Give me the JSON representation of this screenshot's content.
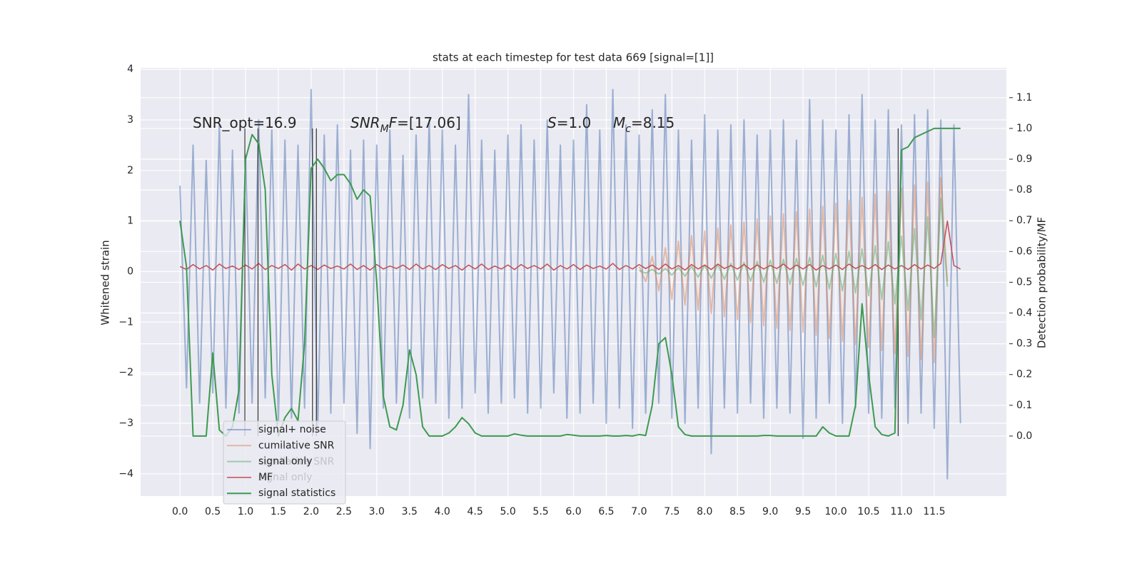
{
  "chart_data": {
    "type": "line",
    "title": "stats at each timestep for test data 669 [signal=[1]]",
    "ylabel": "Whitened strain",
    "y2label": "Detection probability/MF",
    "grid": true,
    "background": "#eaeaf2",
    "xlim": [
      -0.6,
      12.6
    ],
    "ylim": [
      -4.44,
      4.03
    ],
    "y2lim": [
      -0.195,
      1.197
    ],
    "xticks": [
      {
        "value": 0,
        "label": "0.0"
      },
      0.5,
      {
        "value": 1,
        "label": "1.0"
      },
      1.5,
      {
        "value": 2,
        "label": "2.0"
      },
      2.5,
      {
        "value": 3,
        "label": "3.0"
      },
      3.5,
      {
        "value": 4,
        "label": "4.0"
      },
      4.5,
      {
        "value": 5,
        "label": "5.0"
      },
      5.5,
      {
        "value": 6,
        "label": "6.0"
      },
      6.5,
      {
        "value": 7,
        "label": "7.0"
      },
      7.5,
      {
        "value": 8,
        "label": "8.0"
      },
      8.5,
      {
        "value": 9,
        "label": "9.0"
      },
      9.5,
      {
        "value": 10,
        "label": "10.0"
      },
      10.5,
      {
        "value": 11,
        "label": "11.0"
      },
      11.5
    ],
    "yticks": [
      {
        "value": -4,
        "label": "−4"
      },
      {
        "value": -3,
        "label": "−3"
      },
      {
        "value": -2,
        "label": "−2"
      },
      {
        "value": -1,
        "label": "−1"
      },
      0,
      1,
      2,
      3,
      4
    ],
    "y2ticks": [
      {
        "value": 0,
        "label": "0.0"
      },
      0.1,
      0.2,
      0.3,
      0.4,
      0.5,
      0.6,
      0.7,
      0.8,
      0.9,
      {
        "value": 1,
        "label": "1.0"
      },
      1.1
    ],
    "x": [
      0,
      0.1,
      0.2,
      0.3,
      0.4,
      0.5,
      0.6,
      0.7,
      0.8,
      0.9,
      1,
      1.1,
      1.2,
      1.3,
      1.4,
      1.5,
      1.6,
      1.7,
      1.8,
      1.9,
      2,
      2.1,
      2.2,
      2.3,
      2.4,
      2.5,
      2.6,
      2.7,
      2.8,
      2.9,
      3,
      3.1,
      3.2,
      3.3,
      3.4,
      3.5,
      3.6,
      3.7,
      3.8,
      3.9,
      4,
      4.1,
      4.2,
      4.3,
      4.4,
      4.5,
      4.6,
      4.7,
      4.8,
      4.9,
      5,
      5.1,
      5.2,
      5.3,
      5.4,
      5.5,
      5.6,
      5.7,
      5.8,
      5.9,
      6,
      6.1,
      6.2,
      6.3,
      6.4,
      6.5,
      6.6,
      6.7,
      6.8,
      6.9,
      7,
      7.1,
      7.2,
      7.3,
      7.4,
      7.5,
      7.6,
      7.7,
      7.8,
      7.9,
      8,
      8.1,
      8.2,
      8.3,
      8.4,
      8.5,
      8.6,
      8.7,
      8.8,
      8.9,
      9,
      9.1,
      9.2,
      9.3,
      9.4,
      9.5,
      9.6,
      9.7,
      9.8,
      9.9,
      10,
      10.1,
      10.2,
      10.3,
      10.4,
      10.5,
      10.6,
      10.7,
      10.8,
      10.9,
      11,
      11.1,
      11.2,
      11.3,
      11.4,
      11.5,
      11.6,
      11.7,
      11.8,
      11.9
    ],
    "series": [
      {
        "name": "signal+ noise",
        "color": "#4c72b0",
        "alpha": 0.5,
        "width": 2,
        "values": [
          1.7,
          -2.3,
          2.5,
          -2.6,
          2.2,
          -2.4,
          2.9,
          -2.7,
          2.4,
          -2.8,
          2.3,
          -2.6,
          3.0,
          -2.5,
          2.8,
          -3.0,
          2.6,
          -2.9,
          2.5,
          -2.7,
          3.6,
          -3.1,
          2.7,
          -2.8,
          2.9,
          -2.6,
          2.4,
          -3.2,
          2.6,
          -3.5,
          2.5,
          -2.7,
          2.8,
          -2.6,
          2.3,
          -2.9,
          2.7,
          -2.5,
          3.0,
          -2.6,
          2.8,
          -2.9,
          2.5,
          -2.7,
          3.5,
          -2.4,
          2.6,
          -2.8,
          2.4,
          -2.6,
          2.7,
          -2.5,
          2.9,
          -2.8,
          2.6,
          -2.7,
          3.0,
          -2.4,
          2.5,
          -2.9,
          2.6,
          -2.8,
          3.3,
          -2.6,
          2.8,
          -3.0,
          3.6,
          -2.7,
          2.9,
          -3.1,
          2.7,
          -2.8,
          3.2,
          -2.6,
          3.5,
          -2.9,
          2.8,
          -3.0,
          2.6,
          -2.7,
          3.1,
          -3.6,
          2.8,
          -2.7,
          2.9,
          -2.8,
          3.0,
          -2.6,
          2.7,
          -2.9,
          2.8,
          -2.7,
          3.0,
          -2.8,
          2.6,
          -3.3,
          3.4,
          -2.9,
          3.0,
          -2.6,
          2.8,
          -3.0,
          3.1,
          -2.7,
          3.5,
          -2.8,
          3.0,
          -2.9,
          3.2,
          -2.7,
          2.9,
          -3.0,
          3.1,
          -2.8,
          3.2,
          -3.1,
          3.0,
          -4.1,
          2.9,
          -3.0
        ]
      },
      {
        "name": "cumilative SNR",
        "color": "#dd8452",
        "alpha": 0.5,
        "width": 2,
        "x": [
          7,
          7.1,
          7.2,
          7.3,
          7.4,
          7.5,
          7.6,
          7.7,
          7.8,
          7.9,
          8,
          8.1,
          8.2,
          8.3,
          8.4,
          8.5,
          8.6,
          8.7,
          8.8,
          8.9,
          9,
          9.1,
          9.2,
          9.3,
          9.4,
          9.5,
          9.6,
          9.7,
          9.8,
          9.9,
          10,
          10.1,
          10.2,
          10.3,
          10.4,
          10.5,
          10.6,
          10.7,
          10.8,
          10.9,
          11,
          11.1,
          11.2,
          11.3,
          11.4,
          11.5,
          11.6,
          11.7
        ],
        "values": [
          0.1,
          -0.2,
          0.3,
          -0.38,
          0.47,
          -0.55,
          0.6,
          -0.66,
          0.71,
          -0.76,
          0.8,
          -0.83,
          0.86,
          -0.89,
          0.92,
          -0.95,
          0.98,
          -1.01,
          1.04,
          -1.07,
          1.1,
          -1.12,
          1.14,
          -1.16,
          1.18,
          -1.2,
          1.23,
          -1.26,
          1.29,
          -1.32,
          1.35,
          -1.38,
          1.41,
          -1.44,
          1.47,
          -1.5,
          1.53,
          -1.56,
          1.59,
          -1.62,
          1.65,
          -1.68,
          1.71,
          -1.74,
          1.77,
          -1.8,
          1.85,
          -0.2
        ]
      },
      {
        "name": "signal only",
        "color": "#55a868",
        "alpha": 0.5,
        "width": 2,
        "x": [
          7,
          7.1,
          7.2,
          7.3,
          7.4,
          7.5,
          7.6,
          7.7,
          7.8,
          7.9,
          8,
          8.1,
          8.2,
          8.3,
          8.4,
          8.5,
          8.6,
          8.7,
          8.8,
          8.9,
          9,
          9.1,
          9.2,
          9.3,
          9.4,
          9.5,
          9.6,
          9.7,
          9.8,
          9.9,
          10,
          10.1,
          10.2,
          10.3,
          10.4,
          10.5,
          10.6,
          10.7,
          10.8,
          10.9,
          11,
          11.1,
          11.2,
          11.3,
          11.4,
          11.5,
          11.6,
          11.7
        ],
        "values": [
          0.02,
          -0.03,
          0.04,
          -0.05,
          0.06,
          -0.07,
          0.08,
          -0.09,
          0.1,
          -0.11,
          0.12,
          -0.13,
          0.14,
          -0.15,
          0.16,
          -0.17,
          0.18,
          -0.19,
          0.2,
          -0.21,
          0.22,
          -0.23,
          0.24,
          -0.25,
          0.26,
          -0.27,
          0.28,
          -0.3,
          0.32,
          -0.34,
          0.36,
          -0.38,
          0.4,
          -0.42,
          0.45,
          -0.48,
          0.51,
          -0.55,
          0.59,
          -0.64,
          0.7,
          -0.77,
          0.85,
          -0.95,
          1.08,
          -1.3,
          1.45,
          -0.3
        ]
      },
      {
        "name": "MF",
        "color": "#c44e52",
        "alpha": 1,
        "width": 1.5,
        "values": [
          0.1,
          0.04,
          0.14,
          0.05,
          0.12,
          0.03,
          0.15,
          0.06,
          0.11,
          0.04,
          0.13,
          0.05,
          0.16,
          0.04,
          0.12,
          0.06,
          0.14,
          0.03,
          0.15,
          0.05,
          0.12,
          0.04,
          0.13,
          0.06,
          0.11,
          0.05,
          0.15,
          0.04,
          0.12,
          0.03,
          0.14,
          0.05,
          0.11,
          0.06,
          0.13,
          0.04,
          0.15,
          0.05,
          0.12,
          0.04,
          0.14,
          0.06,
          0.12,
          0.03,
          0.13,
          0.05,
          0.15,
          0.04,
          0.11,
          0.05,
          0.13,
          0.04,
          0.14,
          0.06,
          0.12,
          0.05,
          0.15,
          0.03,
          0.12,
          0.05,
          0.14,
          0.04,
          0.13,
          0.06,
          0.11,
          0.05,
          0.16,
          0.04,
          0.12,
          0.05,
          0.14,
          0.06,
          0.13,
          0.04,
          0.15,
          0.05,
          0.12,
          0.03,
          0.14,
          0.05,
          0.13,
          0.04,
          0.15,
          0.06,
          0.12,
          0.05,
          0.14,
          0.04,
          0.13,
          0.05,
          0.12,
          0.06,
          0.15,
          0.04,
          0.13,
          0.05,
          0.14,
          0.03,
          0.12,
          0.05,
          0.13,
          0.04,
          0.15,
          0.06,
          0.12,
          0.05,
          0.14,
          0.04,
          0.13,
          0.05,
          0.12,
          0.04,
          0.14,
          0.05,
          0.13,
          0.06,
          0.16,
          1.0,
          0.12,
          0.05
        ]
      },
      {
        "name": "signal statistics",
        "color": "#3d9a50",
        "alpha": 1,
        "width": 2,
        "axis": "y2",
        "values": [
          0.7,
          0.55,
          0.0,
          0.0,
          0.0,
          0.27,
          0.02,
          0.0,
          0.03,
          0.15,
          0.9,
          0.98,
          0.95,
          0.8,
          0.2,
          0.0,
          0.06,
          0.09,
          0.05,
          0.3,
          0.87,
          0.9,
          0.87,
          0.83,
          0.85,
          0.85,
          0.82,
          0.77,
          0.8,
          0.78,
          0.5,
          0.13,
          0.03,
          0.02,
          0.1,
          0.28,
          0.2,
          0.03,
          0.0,
          0.0,
          0.0,
          0.01,
          0.03,
          0.06,
          0.04,
          0.01,
          0.0,
          0.0,
          0.0,
          0.0,
          0.0,
          0.007,
          0.003,
          0.0,
          0.0,
          0.0,
          0.0,
          0.0,
          0.0,
          0.005,
          0.003,
          0.0,
          0.0,
          0.0,
          0.0,
          0.002,
          0.0,
          0.0,
          0.002,
          0.0,
          0.005,
          0.002,
          0.1,
          0.3,
          0.32,
          0.2,
          0.03,
          0.005,
          0.0,
          0.0,
          0.0,
          0.0,
          0.0,
          0.0,
          0.0,
          0.0,
          0.0,
          0.0,
          0.0,
          0.002,
          0.002,
          0.0,
          0.0,
          0.0,
          0.0,
          0.0,
          0.0,
          0.0,
          0.03,
          0.01,
          0.0,
          0.0,
          0.0,
          0.1,
          0.43,
          0.2,
          0.03,
          0.005,
          0.0,
          0.01,
          0.93,
          0.94,
          0.97,
          0.98,
          0.99,
          1.0,
          1.0,
          1.0,
          1.0,
          1.0
        ]
      }
    ],
    "vlines": {
      "x": [
        0.99,
        1.19,
        2.02,
        2.08,
        10.95
      ],
      "ymin": 0,
      "ymax": 1,
      "axis": "y2",
      "color": "#333333"
    },
    "annotations": [
      [
        {
          "text": "SNR_opt=16.9"
        }
      ],
      [
        {
          "text": "SNR",
          "italic": true
        },
        {
          "text": "M",
          "italic": true,
          "sub": true
        },
        {
          "text": "F",
          "italic": true
        },
        {
          "text": "=[17.06]"
        }
      ],
      [
        {
          "text": "S",
          "italic": true
        },
        {
          "text": "=1.0"
        }
      ],
      [
        {
          "text": "M",
          "italic": true
        },
        {
          "text": "c",
          "italic": true,
          "sub": true
        },
        {
          "text": "=8.15"
        }
      ]
    ],
    "legend2": [
      "cumilative SNR",
      "signal only"
    ]
  }
}
